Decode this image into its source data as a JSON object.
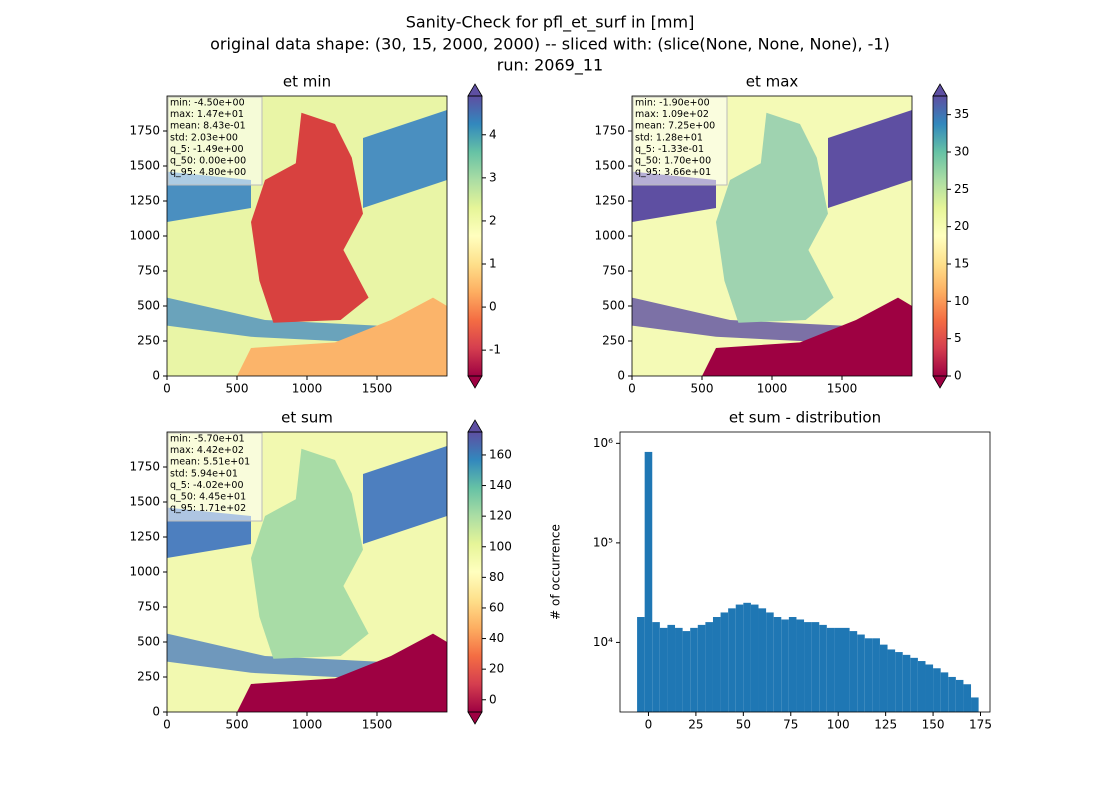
{
  "suptitle": [
    "Sanity-Check for pfl_et_surf in [mm]",
    "original data shape: (30, 15, 2000, 2000) -- sliced with: (slice(None, None, None), -1)",
    "run: 2069_11"
  ],
  "colormap_colors": [
    "#9e0142",
    "#d53e4f",
    "#f46d43",
    "#fdae61",
    "#fee08b",
    "#ffffbf",
    "#e6f598",
    "#abdda4",
    "#66c2a5",
    "#3288bd",
    "#5e4fa2"
  ],
  "chart_data": [
    {
      "type": "heatmap",
      "title": "et min",
      "stats": [
        "min: -4.50e+00",
        "max: 1.47e+01",
        "mean: 8.43e-01",
        "std: 2.03e+00",
        "q_5: -1.49e+00",
        "q_50: 0.00e+00",
        "q_95: 4.80e+00"
      ],
      "xlim": [
        0,
        2000
      ],
      "ylim": [
        0,
        2000
      ],
      "xticks": [
        0,
        500,
        1000,
        1500
      ],
      "yticks": [
        0,
        250,
        500,
        750,
        1000,
        1250,
        1500,
        1750
      ],
      "clim": [
        -1.6,
        4.9
      ],
      "cticks": [
        -1,
        0,
        1,
        2,
        3,
        4
      ]
    },
    {
      "type": "heatmap",
      "title": "et max",
      "stats": [
        "min: -1.90e+00",
        "max: 1.09e+02",
        "mean: 7.25e+00",
        "std: 1.28e+01",
        "q_5: -1.33e-01",
        "q_50: 1.70e+00",
        "q_95: 3.66e+01"
      ],
      "xlim": [
        0,
        2000
      ],
      "ylim": [
        0,
        2000
      ],
      "xticks": [
        0,
        500,
        1000,
        1500
      ],
      "yticks": [
        0,
        250,
        500,
        750,
        1000,
        1250,
        1500,
        1750
      ],
      "clim": [
        0,
        37.5
      ],
      "cticks": [
        0,
        5,
        10,
        15,
        20,
        25,
        30,
        35
      ]
    },
    {
      "type": "heatmap",
      "title": "et sum",
      "stats": [
        "min: -5.70e+01",
        "max: 4.42e+02",
        "mean: 5.51e+01",
        "std: 5.94e+01",
        "q_5: -4.02e+00",
        "q_50: 4.45e+01",
        "q_95: 1.71e+02"
      ],
      "xlim": [
        0,
        2000
      ],
      "ylim": [
        0,
        2000
      ],
      "xticks": [
        0,
        500,
        1000,
        1500
      ],
      "yticks": [
        0,
        250,
        500,
        750,
        1000,
        1250,
        1500,
        1750
      ],
      "clim": [
        -8,
        175
      ],
      "cticks": [
        0,
        20,
        40,
        60,
        80,
        100,
        120,
        140,
        160
      ]
    },
    {
      "type": "histogram",
      "title": "et sum - distribution",
      "ylabel": "# of occurrence",
      "color": "#1f77b4",
      "log_y": true,
      "bins": [
        -6,
        -2,
        2,
        6,
        10,
        14,
        18,
        22,
        26,
        30,
        34,
        38,
        42,
        46,
        50,
        54,
        58,
        62,
        66,
        70,
        74,
        78,
        82,
        86,
        90,
        94,
        98,
        102,
        106,
        110,
        114,
        118,
        122,
        126,
        130,
        134,
        138,
        142,
        146,
        150,
        154,
        158,
        162,
        166,
        170,
        174
      ],
      "values": [
        18000,
        820000,
        16000,
        14000,
        15000,
        14000,
        13000,
        14000,
        15000,
        16000,
        18000,
        20000,
        22000,
        24000,
        25000,
        24000,
        22000,
        20000,
        18000,
        17000,
        18000,
        17000,
        16000,
        16000,
        15000,
        14000,
        14000,
        14000,
        13000,
        12000,
        11000,
        11000,
        9500,
        8500,
        8000,
        7500,
        7000,
        6500,
        6000,
        5500,
        5000,
        4500,
        4200,
        3800,
        2800
      ],
      "xlim": [
        -15,
        180
      ],
      "xticks": [
        0,
        25,
        50,
        75,
        100,
        125,
        150,
        175
      ],
      "ylim": [
        2000,
        1300000
      ],
      "yticks": [
        {
          "value": 10000,
          "label": "10⁴"
        },
        {
          "value": 100000,
          "label": "10⁵"
        },
        {
          "value": 1000000,
          "label": "10⁶"
        }
      ]
    }
  ]
}
